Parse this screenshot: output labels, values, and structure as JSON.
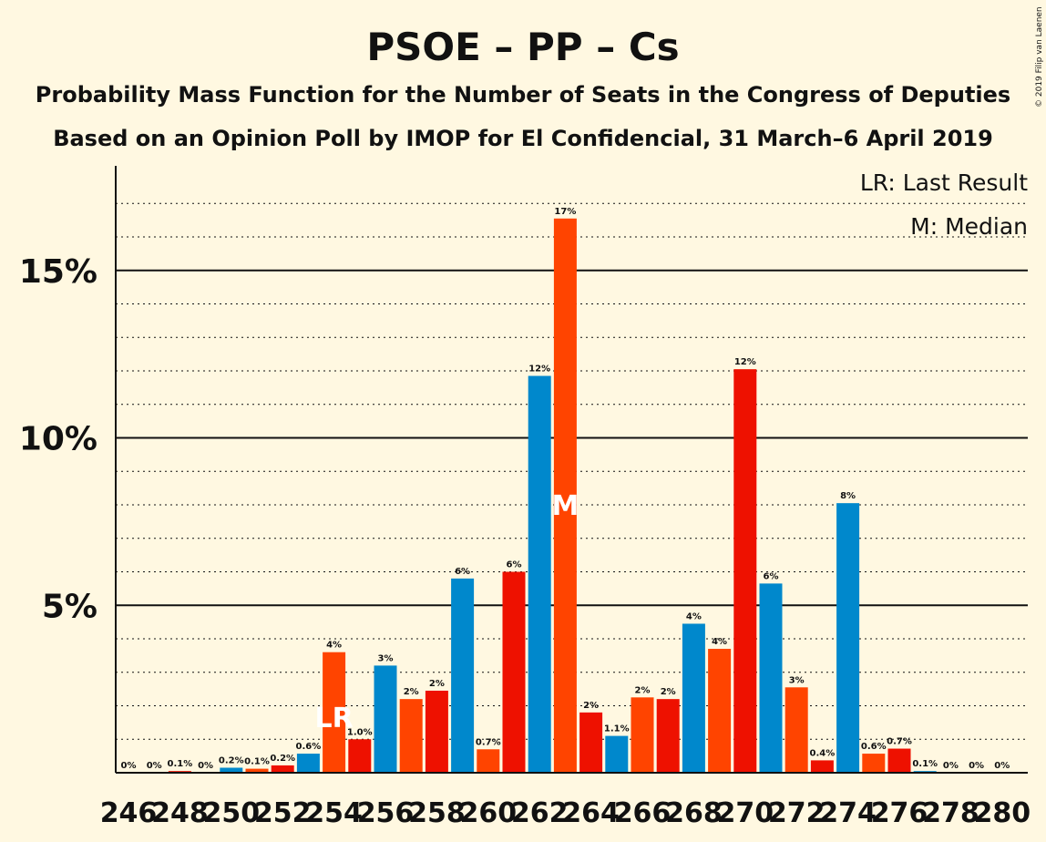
{
  "chart_data": {
    "type": "bar",
    "title": "PSOE – PP – Cs",
    "subtitle": "Probability Mass Function for the Number of Seats in the Congress of Deputies",
    "subtitle2": "Based on an Opinion Poll by IMOP for El Confidencial, 31 March–6 April 2019",
    "copyright": "© 2019 Filip van Laenen",
    "legend": {
      "lr": "LR: Last Result",
      "m": "M: Median",
      "placement": "top-right"
    },
    "ylim": [
      0,
      18
    ],
    "y_ticks": [
      {
        "value": 5,
        "label": "5%"
      },
      {
        "value": 10,
        "label": "10%"
      },
      {
        "value": 15,
        "label": "15%"
      }
    ],
    "x_tick_labels": [
      "246",
      "248",
      "250",
      "252",
      "254",
      "256",
      "258",
      "260",
      "262",
      "264",
      "266",
      "268",
      "270",
      "272",
      "274",
      "276",
      "278",
      "280"
    ],
    "bars": [
      {
        "seats": 246,
        "value": 0.0,
        "label": "0%",
        "color": "#0088CC"
      },
      {
        "seats": 247,
        "value": 0.0,
        "label": "0%",
        "color": "#FF4400"
      },
      {
        "seats": 248,
        "value": 0.05,
        "label": "0.1%",
        "color": "#EE1100"
      },
      {
        "seats": 249,
        "value": 0.0,
        "label": "0%",
        "color": "#0088CC"
      },
      {
        "seats": 250,
        "value": 0.15,
        "label": "0.2%",
        "color": "#0088CC"
      },
      {
        "seats": 251,
        "value": 0.12,
        "label": "0.1%",
        "color": "#FF4400"
      },
      {
        "seats": 252,
        "value": 0.22,
        "label": "0.2%",
        "color": "#EE1100"
      },
      {
        "seats": 253,
        "value": 0.57,
        "label": "0.6%",
        "color": "#0088CC"
      },
      {
        "seats": 254,
        "value": 3.6,
        "label": "4%",
        "color": "#FF4400",
        "marker": "LR"
      },
      {
        "seats": 255,
        "value": 1.0,
        "label": "1.0%",
        "color": "#EE1100"
      },
      {
        "seats": 256,
        "value": 3.2,
        "label": "3%",
        "color": "#0088CC"
      },
      {
        "seats": 257,
        "value": 2.2,
        "label": "2%",
        "color": "#FF4400"
      },
      {
        "seats": 258,
        "value": 2.45,
        "label": "2%",
        "color": "#EE1100"
      },
      {
        "seats": 259,
        "value": 5.8,
        "label": "6%",
        "color": "#0088CC"
      },
      {
        "seats": 260,
        "value": 0.7,
        "label": "0.7%",
        "color": "#FF4400"
      },
      {
        "seats": 261,
        "value": 6.0,
        "label": "6%",
        "color": "#EE1100"
      },
      {
        "seats": 262,
        "value": 11.85,
        "label": "12%",
        "color": "#0088CC"
      },
      {
        "seats": 263,
        "value": 16.55,
        "label": "17%",
        "color": "#FF4400",
        "marker": "M"
      },
      {
        "seats": 264,
        "value": 1.8,
        "label": "2%",
        "color": "#EE1100"
      },
      {
        "seats": 265,
        "value": 1.1,
        "label": "1.1%",
        "color": "#0088CC"
      },
      {
        "seats": 266,
        "value": 2.25,
        "label": "2%",
        "color": "#FF4400"
      },
      {
        "seats": 267,
        "value": 2.2,
        "label": "2%",
        "color": "#EE1100"
      },
      {
        "seats": 268,
        "value": 4.45,
        "label": "4%",
        "color": "#0088CC"
      },
      {
        "seats": 269,
        "value": 3.7,
        "label": "4%",
        "color": "#FF4400"
      },
      {
        "seats": 270,
        "value": 12.05,
        "label": "12%",
        "color": "#EE1100"
      },
      {
        "seats": 271,
        "value": 5.65,
        "label": "6%",
        "color": "#0088CC"
      },
      {
        "seats": 272,
        "value": 2.55,
        "label": "3%",
        "color": "#FF4400"
      },
      {
        "seats": 273,
        "value": 0.37,
        "label": "0.4%",
        "color": "#EE1100"
      },
      {
        "seats": 274,
        "value": 8.05,
        "label": "8%",
        "color": "#0088CC"
      },
      {
        "seats": 275,
        "value": 0.57,
        "label": "0.6%",
        "color": "#FF4400"
      },
      {
        "seats": 276,
        "value": 0.72,
        "label": "0.7%",
        "color": "#EE1100"
      },
      {
        "seats": 277,
        "value": 0.05,
        "label": "0.1%",
        "color": "#0088CC"
      },
      {
        "seats": 278,
        "value": 0.0,
        "label": "0%",
        "color": "#FF4400"
      },
      {
        "seats": 279,
        "value": 0.0,
        "label": "0%",
        "color": "#EE1100"
      },
      {
        "seats": 280,
        "value": 0.0,
        "label": "0%",
        "color": "#0088CC"
      }
    ]
  }
}
